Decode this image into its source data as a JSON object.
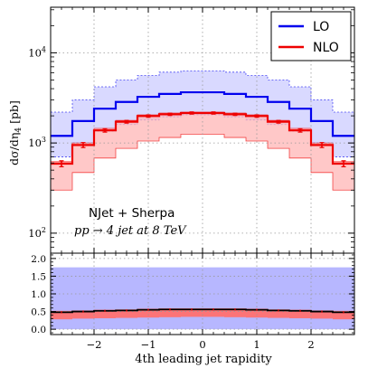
{
  "chart_data": {
    "type": "step-histogram",
    "title": "",
    "xlabel": "4th leading jet rapidity",
    "ylabel": "dσ/dη",
    "ylabel_subscript": "4",
    "ylabel_unit": "[pb]",
    "annotation_line1": "NJet + Sherpa",
    "annotation_line2": "pp → 4 jet at 8 TeV",
    "x_edges": [
      -2.8,
      -2.4,
      -2.0,
      -1.6,
      -1.2,
      -0.8,
      -0.4,
      0.0,
      0.4,
      0.8,
      1.2,
      1.6,
      2.0,
      2.4,
      2.8
    ],
    "x_ticks": [
      -2,
      -1,
      0,
      1,
      2
    ],
    "x_tick_labels": [
      "−2",
      "−1",
      "0",
      "1",
      "2"
    ],
    "main": {
      "scale": "log",
      "ylim": [
        60,
        32000
      ],
      "y_tick_exponents": [
        2,
        3,
        4
      ],
      "y_tick_base": "10",
      "grid": true
    },
    "ratio": {
      "ylim": [
        -0.15,
        2.15
      ],
      "y_ticks": [
        0.0,
        0.5,
        1.0,
        1.5,
        2.0
      ],
      "y_tick_labels": [
        "0.0",
        "0.5",
        "1.0",
        "1.5",
        "2.0"
      ],
      "grid": true,
      "LO_band": [
        0.0,
        1.75
      ],
      "NLO_central": [
        0.48,
        0.5,
        0.52,
        0.53,
        0.55,
        0.56,
        0.56,
        0.56,
        0.56,
        0.55,
        0.53,
        0.52,
        0.5,
        0.48
      ],
      "NLO_band_low": [
        0.28,
        0.3,
        0.31,
        0.32,
        0.33,
        0.34,
        0.35,
        0.35,
        0.34,
        0.33,
        0.32,
        0.31,
        0.3,
        0.28
      ],
      "NLO_band_high": [
        0.52,
        0.53,
        0.55,
        0.56,
        0.58,
        0.59,
        0.59,
        0.59,
        0.59,
        0.58,
        0.56,
        0.55,
        0.53,
        0.52
      ]
    },
    "legend": {
      "position": "top-right",
      "entries": [
        "LO",
        "NLO"
      ]
    },
    "series": [
      {
        "name": "LO",
        "color": "#0000ee",
        "band_color": "#aaaaff",
        "values": [
          1200,
          1750,
          2400,
          2850,
          3250,
          3500,
          3650,
          3650,
          3500,
          3250,
          2850,
          2400,
          1750,
          1200
        ],
        "band_low": [
          700,
          1000,
          1350,
          1600,
          1800,
          1950,
          2050,
          2050,
          1950,
          1800,
          1600,
          1350,
          1000,
          700
        ],
        "band_high": [
          2200,
          3000,
          4200,
          5000,
          5600,
          6100,
          6300,
          6300,
          6100,
          5600,
          5000,
          4200,
          3000,
          2200
        ]
      },
      {
        "name": "NLO",
        "color": "#ee0000",
        "band_color": "#ffb5b5",
        "values": [
          590,
          950,
          1380,
          1720,
          1990,
          2080,
          2150,
          2150,
          2080,
          1990,
          1720,
          1380,
          950,
          590
        ],
        "errors": [
          45,
          60,
          60,
          60,
          60,
          60,
          60,
          60,
          60,
          60,
          60,
          60,
          60,
          45
        ],
        "band_low": [
          300,
          470,
          680,
          870,
          1050,
          1150,
          1250,
          1250,
          1150,
          1050,
          870,
          680,
          470,
          300
        ],
        "band_high": [
          620,
          1000,
          1450,
          1780,
          2050,
          2150,
          2200,
          2200,
          2150,
          2050,
          1780,
          1450,
          1000,
          620
        ]
      }
    ]
  }
}
